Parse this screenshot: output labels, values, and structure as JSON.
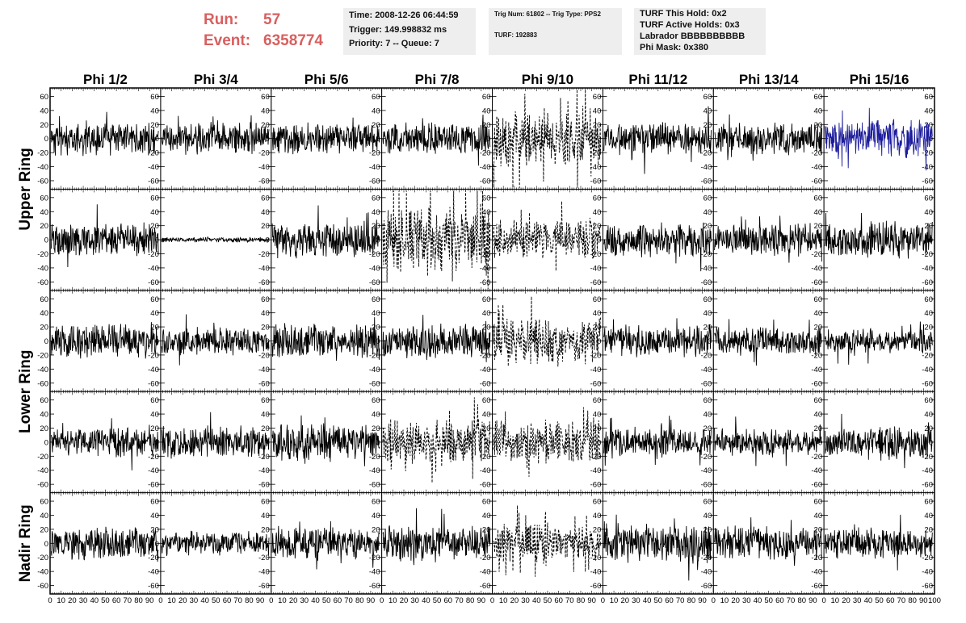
{
  "run": {
    "run_label": "Run:",
    "run_value": "57",
    "event_label": "Event:",
    "event_value": "6358774"
  },
  "info_time": {
    "time": "Time: 2008-12-26 06:44:59",
    "trigger": "Trigger: 149.998832 ms",
    "priority": "Priority: 7 -- Queue: 7"
  },
  "info_trig": {
    "trig": "Trig Num: 61802 -- Trig Type: PPS2",
    "turf": "TURF: 192883"
  },
  "info_turf": {
    "hold": "TURF This Hold: 0x2",
    "active": "TURF Active Holds: 0x3",
    "labrador": "Labrador BBBBBBBBBB",
    "phimask": "Phi Mask: 0x380"
  },
  "colors": {
    "normal": "#000000",
    "highlight": "#1c1c9c",
    "accent": "#d85f5f",
    "infobox": "#eeeeee"
  },
  "chart_data": {
    "type": "line",
    "columns": [
      "Phi 1/2",
      "Phi 3/4",
      "Phi 5/6",
      "Phi 7/8",
      "Phi 9/10",
      "Phi 11/12",
      "Phi 13/14",
      "Phi 15/16"
    ],
    "ring_labels": [
      {
        "label": "Upper Ring",
        "rows": [
          0,
          1
        ]
      },
      {
        "label": "Lower Ring",
        "rows": [
          2,
          3
        ]
      },
      {
        "label": "Nadir Ring",
        "rows": [
          4
        ]
      }
    ],
    "xlim": [
      0,
      100
    ],
    "ylim": [
      -72,
      72
    ],
    "yticks": [
      -60,
      -40,
      -20,
      0,
      20,
      40,
      60
    ],
    "xtick_labels": [
      "0",
      "10",
      "20",
      "30",
      "40",
      "50",
      "60",
      "70",
      "80",
      "90",
      "100"
    ],
    "grid": false,
    "panels": [
      {
        "row": 0,
        "col": 0,
        "amp": 14,
        "seed": 11,
        "style": "solid"
      },
      {
        "row": 0,
        "col": 1,
        "amp": 13,
        "seed": 12,
        "style": "solid"
      },
      {
        "row": 0,
        "col": 2,
        "amp": 13,
        "seed": 13,
        "style": "solid"
      },
      {
        "row": 0,
        "col": 3,
        "amp": 13,
        "seed": 14,
        "style": "solid"
      },
      {
        "row": 0,
        "col": 4,
        "amp": 22,
        "seed": 15,
        "style": "dashed"
      },
      {
        "row": 0,
        "col": 5,
        "amp": 13,
        "seed": 16,
        "style": "solid"
      },
      {
        "row": 0,
        "col": 6,
        "amp": 13,
        "seed": 17,
        "style": "solid"
      },
      {
        "row": 0,
        "col": 7,
        "amp": 16,
        "seed": 18,
        "style": "highlight"
      },
      {
        "row": 1,
        "col": 0,
        "amp": 14,
        "seed": 21,
        "style": "solid"
      },
      {
        "row": 1,
        "col": 1,
        "amp": 2,
        "seed": 22,
        "style": "solid"
      },
      {
        "row": 1,
        "col": 2,
        "amp": 15,
        "seed": 23,
        "style": "solid"
      },
      {
        "row": 1,
        "col": 3,
        "amp": 26,
        "seed": 24,
        "style": "dashed"
      },
      {
        "row": 1,
        "col": 4,
        "amp": 16,
        "seed": 25,
        "style": "dashed"
      },
      {
        "row": 1,
        "col": 5,
        "amp": 14,
        "seed": 26,
        "style": "solid"
      },
      {
        "row": 1,
        "col": 6,
        "amp": 13,
        "seed": 27,
        "style": "solid"
      },
      {
        "row": 1,
        "col": 7,
        "amp": 15,
        "seed": 28,
        "style": "solid"
      },
      {
        "row": 2,
        "col": 0,
        "amp": 14,
        "seed": 31,
        "style": "solid"
      },
      {
        "row": 2,
        "col": 1,
        "amp": 11,
        "seed": 32,
        "style": "solid"
      },
      {
        "row": 2,
        "col": 2,
        "amp": 14,
        "seed": 33,
        "style": "solid"
      },
      {
        "row": 2,
        "col": 3,
        "amp": 14,
        "seed": 34,
        "style": "solid"
      },
      {
        "row": 2,
        "col": 4,
        "amp": 20,
        "seed": 35,
        "style": "dashed"
      },
      {
        "row": 2,
        "col": 5,
        "amp": 13,
        "seed": 36,
        "style": "solid"
      },
      {
        "row": 2,
        "col": 6,
        "amp": 12,
        "seed": 37,
        "style": "solid"
      },
      {
        "row": 2,
        "col": 7,
        "amp": 10,
        "seed": 38,
        "style": "solid"
      },
      {
        "row": 3,
        "col": 0,
        "amp": 12,
        "seed": 41,
        "style": "solid"
      },
      {
        "row": 3,
        "col": 1,
        "amp": 13,
        "seed": 42,
        "style": "solid"
      },
      {
        "row": 3,
        "col": 2,
        "amp": 15,
        "seed": 43,
        "style": "solid"
      },
      {
        "row": 3,
        "col": 3,
        "amp": 18,
        "seed": 44,
        "style": "dashed"
      },
      {
        "row": 3,
        "col": 4,
        "amp": 17,
        "seed": 45,
        "style": "dashed"
      },
      {
        "row": 3,
        "col": 5,
        "amp": 12,
        "seed": 46,
        "style": "solid"
      },
      {
        "row": 3,
        "col": 6,
        "amp": 11,
        "seed": 47,
        "style": "solid"
      },
      {
        "row": 3,
        "col": 7,
        "amp": 14,
        "seed": 48,
        "style": "solid"
      },
      {
        "row": 4,
        "col": 0,
        "amp": 13,
        "seed": 51,
        "style": "solid"
      },
      {
        "row": 4,
        "col": 1,
        "amp": 10,
        "seed": 52,
        "style": "solid"
      },
      {
        "row": 4,
        "col": 2,
        "amp": 13,
        "seed": 53,
        "style": "solid"
      },
      {
        "row": 4,
        "col": 3,
        "amp": 15,
        "seed": 54,
        "style": "solid"
      },
      {
        "row": 4,
        "col": 4,
        "amp": 16,
        "seed": 55,
        "style": "dashed"
      },
      {
        "row": 4,
        "col": 5,
        "amp": 16,
        "seed": 56,
        "style": "solid"
      },
      {
        "row": 4,
        "col": 6,
        "amp": 14,
        "seed": 57,
        "style": "solid"
      },
      {
        "row": 4,
        "col": 7,
        "amp": 13,
        "seed": 58,
        "style": "solid"
      }
    ]
  }
}
